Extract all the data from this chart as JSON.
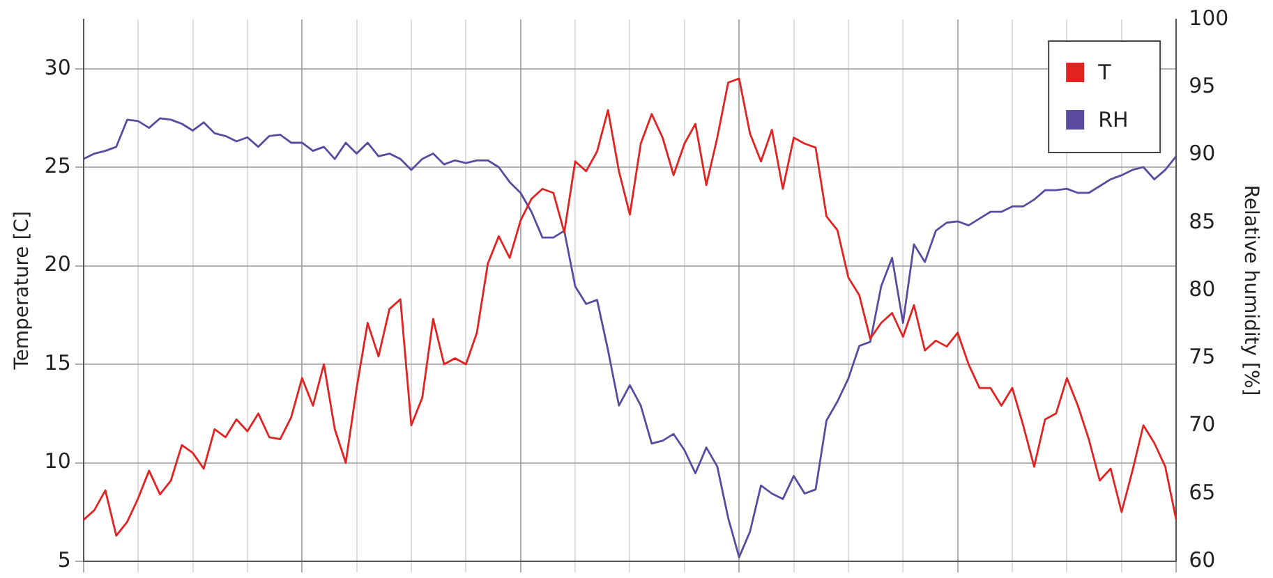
{
  "chart_data": {
    "type": "line",
    "ylabel": "Temperature [C]",
    "y2label": "Relative humidity [%]",
    "categories": [
      null,
      null,
      null,
      null,
      null,
      null,
      null,
      null,
      null,
      null,
      null,
      null,
      null,
      null,
      null,
      null,
      null,
      null,
      null,
      null,
      null,
      null,
      null,
      null,
      null,
      null,
      null,
      null,
      null,
      null,
      null,
      null,
      null,
      null,
      null,
      null,
      null,
      null,
      null,
      null,
      null,
      null,
      null,
      null,
      null,
      null,
      null,
      null,
      null,
      null,
      null,
      null,
      null,
      null,
      null,
      null,
      null,
      null,
      null,
      null,
      null,
      null,
      null,
      null,
      null,
      null,
      null,
      null,
      null,
      null,
      null,
      null,
      null,
      null,
      null,
      null,
      null,
      null,
      null,
      null,
      null,
      null,
      null,
      null,
      null,
      null,
      null,
      null,
      null,
      null,
      null,
      null,
      null,
      null,
      null,
      null,
      null,
      null,
      null,
      null,
      null
    ],
    "series": [
      {
        "name": "T",
        "color": "#e32222",
        "values": [
          7.1,
          7.6,
          8.6,
          6.3,
          7.0,
          8.2,
          9.6,
          8.4,
          9.1,
          10.9,
          10.5,
          9.7,
          11.7,
          11.3,
          12.2,
          11.6,
          12.5,
          11.3,
          11.2,
          12.3,
          14.3,
          12.9,
          15.0,
          11.7,
          10.0,
          13.8,
          17.1,
          15.4,
          17.8,
          18.3,
          11.9,
          13.3,
          17.3,
          15.0,
          15.3,
          15.0,
          16.6,
          20.1,
          21.5,
          20.4,
          22.3,
          23.4,
          23.9,
          23.7,
          21.7,
          25.3,
          24.8,
          25.8,
          27.9,
          24.8,
          22.6,
          26.2,
          27.7,
          26.5,
          24.6,
          26.2,
          27.2,
          24.1,
          26.5,
          29.3,
          29.5,
          26.7,
          25.3,
          26.9,
          23.9,
          26.5,
          26.2,
          26.0,
          22.5,
          21.8,
          19.4,
          18.5,
          16.3,
          17.1,
          17.6,
          16.4,
          18.0,
          15.7,
          16.2,
          15.9,
          16.6,
          15.0,
          13.8,
          13.8,
          12.9,
          13.8,
          11.9,
          9.8,
          12.2,
          12.5,
          14.3,
          12.9,
          11.2,
          9.1,
          9.7,
          7.5,
          9.6,
          11.9,
          11.0,
          9.8,
          7.1
        ]
      },
      {
        "name": "RH",
        "color": "#5a4ba0",
        "axis": "y2",
        "values": [
          89.7,
          90.1,
          90.3,
          90.6,
          92.6,
          92.5,
          92.0,
          92.7,
          92.6,
          92.3,
          91.8,
          92.4,
          91.6,
          91.4,
          91.0,
          91.3,
          90.6,
          91.4,
          91.5,
          90.9,
          90.9,
          90.3,
          90.6,
          89.7,
          90.9,
          90.1,
          90.9,
          89.9,
          90.1,
          89.7,
          88.9,
          89.7,
          90.1,
          89.3,
          89.6,
          89.4,
          89.6,
          89.6,
          89.1,
          88.0,
          87.2,
          85.8,
          83.9,
          83.9,
          84.4,
          80.3,
          79.0,
          79.3,
          75.6,
          71.5,
          73.0,
          71.5,
          68.7,
          68.9,
          69.4,
          68.2,
          66.5,
          68.4,
          67.0,
          63.2,
          60.3,
          62.2,
          65.6,
          65.0,
          64.6,
          66.3,
          65.0,
          65.3,
          70.4,
          71.8,
          73.5,
          75.9,
          76.2,
          80.3,
          82.4,
          77.6,
          83.4,
          82.1,
          84.4,
          85.0,
          85.1,
          84.8,
          85.3,
          85.8,
          85.8,
          86.2,
          86.2,
          86.7,
          87.4,
          87.4,
          87.5,
          87.2,
          87.2,
          87.7,
          88.2,
          88.5,
          88.9,
          89.1,
          88.2,
          88.9,
          89.9
        ]
      }
    ],
    "ylim": [
      5,
      32.5
    ],
    "yticks": [
      5,
      10,
      15,
      20,
      25,
      30
    ],
    "y2lim": [
      60,
      100
    ],
    "y2ticks": [
      60,
      65,
      70,
      75,
      80,
      85,
      90,
      95,
      100
    ],
    "grid": true,
    "legend": "top right",
    "marker": "none",
    "line_style": "solid"
  }
}
